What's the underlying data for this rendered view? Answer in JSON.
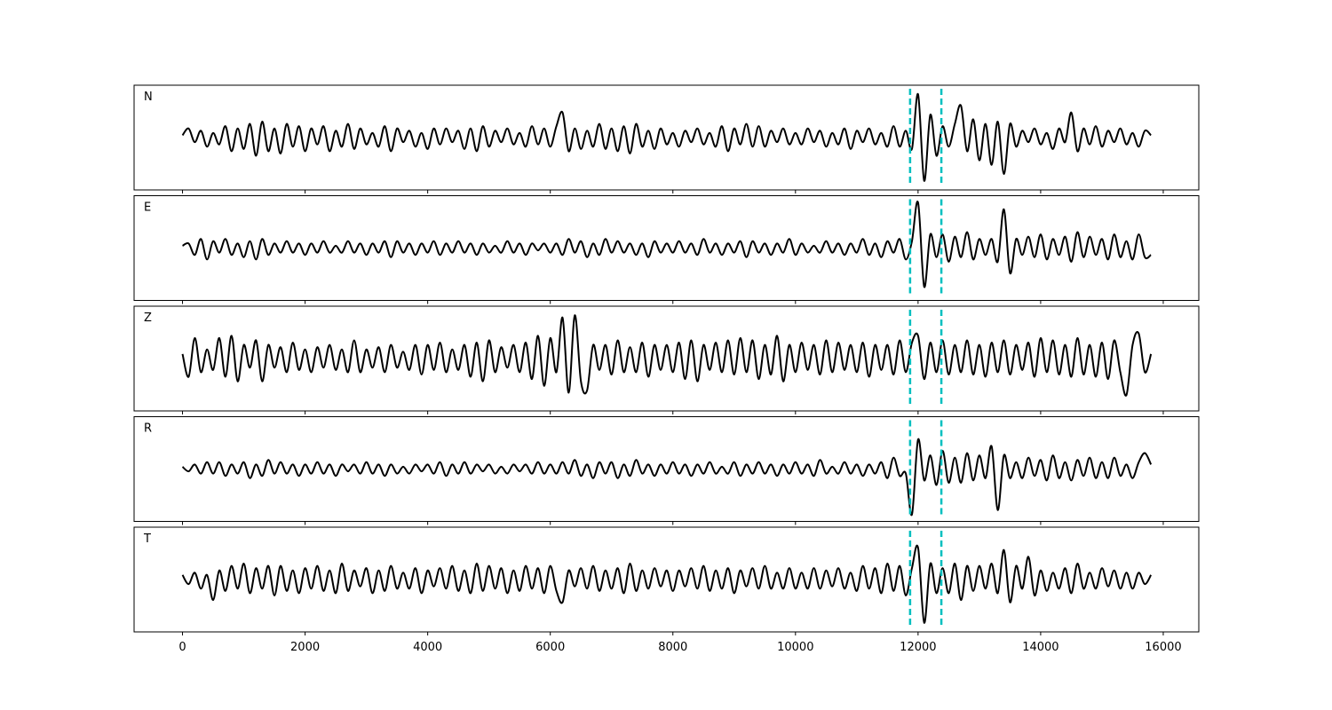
{
  "chart_data": {
    "type": "line",
    "x": [
      0,
      100,
      200,
      300,
      400,
      500,
      600,
      700,
      800,
      900,
      1000,
      1100,
      1200,
      1300,
      1400,
      1500,
      1600,
      1700,
      1800,
      1900,
      2000,
      2100,
      2200,
      2300,
      2400,
      2500,
      2600,
      2700,
      2800,
      2900,
      3000,
      3100,
      3200,
      3300,
      3400,
      3500,
      3600,
      3700,
      3800,
      3900,
      4000,
      4100,
      4200,
      4300,
      4400,
      4500,
      4600,
      4700,
      4800,
      4900,
      5000,
      5100,
      5200,
      5300,
      5400,
      5500,
      5600,
      5700,
      5800,
      5900,
      6000,
      6100,
      6200,
      6300,
      6400,
      6500,
      6600,
      6700,
      6800,
      6900,
      7000,
      7100,
      7200,
      7300,
      7400,
      7500,
      7600,
      7700,
      7800,
      7900,
      8000,
      8100,
      8200,
      8300,
      8400,
      8500,
      8600,
      8700,
      8800,
      8900,
      9000,
      9100,
      9200,
      9300,
      9400,
      9500,
      9600,
      9700,
      9800,
      9900,
      10000,
      10100,
      10200,
      10300,
      10400,
      10500,
      10600,
      10700,
      10800,
      10900,
      11000,
      11100,
      11200,
      11300,
      11400,
      11500,
      11600,
      11700,
      11800,
      11900,
      12000,
      12100,
      12200,
      12300,
      12400,
      12500,
      12600,
      12700,
      12800,
      12900,
      13000,
      13100,
      13200,
      13300,
      13400,
      13500,
      13600,
      13700,
      13800,
      13900,
      14000,
      14100,
      14200,
      14300,
      14400,
      14500,
      14600,
      14700,
      14800,
      14900,
      15000,
      15100,
      15200,
      15300,
      15400,
      15500,
      15600,
      15700,
      15800
    ],
    "series": [
      {
        "name": "N",
        "color": "#000000",
        "values": [
          0.05,
          0.2,
          -0.1,
          0.15,
          -0.2,
          0.1,
          -0.15,
          0.25,
          -0.3,
          0.2,
          -0.25,
          0.3,
          -0.4,
          0.35,
          -0.3,
          0.2,
          -0.35,
          0.3,
          -0.2,
          0.25,
          -0.3,
          0.2,
          -0.15,
          0.25,
          -0.3,
          0.15,
          -0.2,
          0.3,
          -0.25,
          0.2,
          -0.15,
          0.1,
          -0.2,
          0.25,
          -0.3,
          0.2,
          -0.1,
          0.15,
          -0.2,
          0.1,
          -0.25,
          0.2,
          -0.15,
          0.2,
          -0.1,
          0.15,
          -0.25,
          0.2,
          -0.3,
          0.25,
          -0.2,
          0.15,
          -0.1,
          0.2,
          -0.15,
          0.1,
          -0.2,
          0.25,
          -0.15,
          0.2,
          -0.2,
          0.25,
          0.55,
          -0.3,
          0.2,
          -0.25,
          0.15,
          -0.2,
          0.3,
          -0.25,
          0.2,
          -0.3,
          0.25,
          -0.35,
          0.3,
          -0.2,
          0.15,
          -0.25,
          0.2,
          -0.15,
          0.1,
          -0.2,
          0.15,
          -0.1,
          0.2,
          -0.15,
          0.1,
          -0.2,
          0.25,
          -0.3,
          0.2,
          -0.15,
          0.3,
          -0.2,
          0.25,
          -0.2,
          0.15,
          -0.1,
          0.2,
          -0.15,
          0.1,
          -0.15,
          0.2,
          -0.1,
          0.15,
          -0.2,
          0.1,
          -0.15,
          0.2,
          -0.25,
          0.15,
          -0.1,
          0.2,
          -0.15,
          0.1,
          -0.2,
          0.25,
          -0.2,
          0.15,
          -0.25,
          0.95,
          -0.95,
          0.5,
          -0.4,
          0.25,
          -0.2,
          0.3,
          0.7,
          -0.3,
          0.4,
          -0.5,
          0.3,
          -0.6,
          0.35,
          -0.8,
          0.3,
          -0.2,
          0.15,
          -0.1,
          0.2,
          -0.15,
          0.1,
          -0.25,
          0.2,
          -0.1,
          0.55,
          -0.3,
          0.2,
          -0.15,
          0.25,
          -0.2,
          0.15,
          -0.1,
          0.2,
          -0.15,
          0.1,
          -0.2,
          0.15,
          0.05
        ]
      },
      {
        "name": "E",
        "color": "#000000",
        "values": [
          0.05,
          0.1,
          -0.15,
          0.2,
          -0.25,
          0.15,
          -0.1,
          0.2,
          -0.15,
          0.1,
          -0.2,
          0.15,
          -0.25,
          0.2,
          -0.15,
          0.1,
          -0.1,
          0.15,
          -0.1,
          0.1,
          -0.15,
          0.1,
          -0.1,
          0.15,
          -0.1,
          0.05,
          -0.1,
          0.15,
          -0.1,
          0.1,
          -0.15,
          0.1,
          -0.1,
          0.15,
          -0.2,
          0.15,
          -0.1,
          0.1,
          -0.15,
          0.1,
          -0.1,
          0.15,
          -0.15,
          0.1,
          -0.1,
          0.15,
          -0.1,
          0.1,
          -0.15,
          0.1,
          -0.1,
          0.05,
          -0.1,
          0.15,
          -0.1,
          0.1,
          -0.15,
          0.1,
          -0.05,
          0.1,
          -0.1,
          0.1,
          -0.15,
          0.2,
          -0.1,
          0.15,
          -0.2,
          0.1,
          -0.15,
          0.2,
          -0.1,
          0.15,
          -0.1,
          0.1,
          -0.15,
          0.1,
          -0.2,
          0.15,
          -0.1,
          0.1,
          -0.1,
          0.15,
          -0.1,
          0.1,
          -0.15,
          0.2,
          -0.1,
          0.1,
          -0.15,
          0.1,
          -0.1,
          0.15,
          -0.2,
          0.15,
          -0.1,
          0.1,
          -0.15,
          0.1,
          -0.1,
          0.2,
          -0.15,
          0.1,
          -0.1,
          0.05,
          -0.1,
          0.15,
          -0.1,
          0.1,
          -0.15,
          0.1,
          -0.1,
          0.2,
          -0.15,
          0.1,
          -0.2,
          0.15,
          -0.1,
          0.2,
          -0.25,
          0.15,
          1.0,
          -0.85,
          0.3,
          -0.2,
          0.3,
          -0.3,
          0.25,
          -0.2,
          0.35,
          -0.25,
          0.2,
          -0.15,
          0.2,
          -0.3,
          0.85,
          -0.55,
          0.2,
          -0.15,
          0.25,
          -0.2,
          0.3,
          -0.25,
          0.2,
          -0.15,
          0.25,
          -0.3,
          0.35,
          -0.2,
          0.25,
          -0.15,
          0.2,
          -0.25,
          0.3,
          -0.2,
          0.15,
          -0.25,
          0.3,
          -0.2,
          -0.15
        ]
      },
      {
        "name": "Z",
        "color": "#000000",
        "values": [
          0.1,
          -0.4,
          0.45,
          -0.3,
          0.2,
          -0.25,
          0.45,
          -0.4,
          0.5,
          -0.5,
          0.3,
          -0.2,
          0.4,
          -0.5,
          0.3,
          -0.2,
          0.25,
          -0.3,
          0.35,
          -0.25,
          0.2,
          -0.3,
          0.25,
          -0.2,
          0.3,
          -0.25,
          0.2,
          -0.3,
          0.4,
          -0.3,
          0.2,
          -0.2,
          0.25,
          -0.3,
          0.3,
          -0.2,
          0.15,
          -0.25,
          0.3,
          -0.35,
          0.3,
          -0.25,
          0.35,
          -0.3,
          0.2,
          -0.25,
          0.3,
          -0.4,
          0.35,
          -0.5,
          0.4,
          -0.3,
          0.25,
          -0.2,
          0.3,
          -0.3,
          0.35,
          -0.45,
          0.5,
          -0.6,
          0.45,
          -0.3,
          0.9,
          -0.75,
          0.95,
          -0.5,
          -0.7,
          0.3,
          -0.25,
          0.3,
          -0.35,
          0.4,
          -0.3,
          0.25,
          -0.3,
          0.35,
          -0.4,
          0.3,
          -0.25,
          0.3,
          -0.3,
          0.35,
          -0.45,
          0.4,
          -0.5,
          0.3,
          -0.25,
          0.35,
          -0.3,
          0.4,
          -0.35,
          0.45,
          -0.3,
          0.4,
          -0.45,
          0.3,
          -0.35,
          0.5,
          -0.5,
          0.3,
          -0.3,
          0.35,
          -0.25,
          0.3,
          -0.35,
          0.4,
          -0.3,
          0.35,
          -0.25,
          0.3,
          -0.3,
          0.35,
          -0.4,
          0.3,
          -0.25,
          0.3,
          -0.35,
          0.4,
          -0.3,
          0.35,
          0.5,
          -0.45,
          0.35,
          -0.3,
          0.4,
          -0.35,
          0.3,
          -0.3,
          0.4,
          -0.35,
          0.3,
          -0.4,
          0.35,
          -0.3,
          0.4,
          -0.35,
          0.3,
          -0.25,
          0.35,
          -0.4,
          0.45,
          -0.3,
          0.4,
          -0.35,
          0.3,
          -0.4,
          0.45,
          -0.35,
          0.3,
          -0.4,
          0.35,
          -0.45,
          0.4,
          -0.3,
          -0.8,
          0.3,
          0.55,
          -0.3,
          0.1
        ]
      },
      {
        "name": "R",
        "color": "#000000",
        "values": [
          0.05,
          -0.05,
          0.1,
          -0.1,
          0.15,
          -0.1,
          0.15,
          -0.15,
          0.1,
          -0.1,
          0.15,
          -0.2,
          0.1,
          -0.15,
          0.2,
          -0.1,
          0.15,
          -0.1,
          0.1,
          -0.15,
          0.1,
          -0.1,
          0.15,
          -0.1,
          0.1,
          -0.15,
          0.1,
          -0.05,
          0.1,
          -0.1,
          0.15,
          -0.1,
          0.1,
          -0.15,
          0.1,
          -0.1,
          0.05,
          -0.1,
          0.1,
          -0.05,
          0.1,
          -0.1,
          0.15,
          -0.15,
          0.1,
          -0.1,
          0.15,
          -0.1,
          0.1,
          -0.05,
          0.1,
          -0.1,
          0.05,
          -0.1,
          0.1,
          -0.05,
          0.1,
          -0.1,
          0.15,
          -0.1,
          0.1,
          -0.1,
          0.15,
          -0.1,
          0.2,
          -0.15,
          0.1,
          -0.2,
          0.15,
          -0.1,
          0.15,
          -0.2,
          0.1,
          -0.15,
          0.2,
          -0.1,
          0.1,
          -0.15,
          0.1,
          -0.1,
          0.15,
          -0.1,
          0.1,
          -0.15,
          0.1,
          -0.1,
          0.15,
          -0.1,
          0.05,
          -0.1,
          0.15,
          -0.15,
          0.1,
          -0.1,
          0.15,
          -0.1,
          0.1,
          -0.15,
          0.1,
          -0.1,
          0.15,
          -0.1,
          0.1,
          -0.15,
          0.2,
          -0.1,
          0.05,
          -0.1,
          0.15,
          -0.1,
          0.1,
          -0.15,
          0.1,
          -0.1,
          0.15,
          -0.2,
          0.25,
          -0.15,
          -0.1,
          -1.0,
          0.65,
          -0.25,
          0.3,
          -0.35,
          0.4,
          -0.3,
          0.25,
          -0.3,
          0.35,
          -0.25,
          0.3,
          -0.2,
          0.5,
          -0.9,
          0.3,
          -0.2,
          0.15,
          -0.2,
          0.25,
          -0.15,
          0.2,
          -0.25,
          0.3,
          -0.2,
          0.15,
          -0.25,
          0.2,
          -0.15,
          0.25,
          -0.2,
          0.15,
          -0.2,
          0.25,
          -0.15,
          0.1,
          -0.2,
          0.15,
          0.35,
          0.1
        ]
      },
      {
        "name": "T",
        "color": "#000000",
        "values": [
          0.1,
          -0.1,
          0.15,
          -0.2,
          0.1,
          -0.45,
          0.2,
          -0.25,
          0.3,
          -0.2,
          0.35,
          -0.3,
          0.25,
          -0.2,
          0.3,
          -0.35,
          0.3,
          -0.25,
          0.2,
          -0.3,
          0.25,
          -0.2,
          0.3,
          -0.25,
          0.2,
          -0.3,
          0.35,
          -0.25,
          0.2,
          -0.15,
          0.25,
          -0.3,
          0.2,
          -0.25,
          0.3,
          -0.2,
          0.15,
          -0.2,
          0.25,
          -0.3,
          0.2,
          -0.15,
          0.25,
          -0.2,
          0.3,
          -0.25,
          0.2,
          -0.3,
          0.35,
          -0.25,
          0.3,
          -0.2,
          0.25,
          -0.3,
          0.2,
          -0.25,
          0.3,
          -0.2,
          0.25,
          -0.3,
          0.3,
          -0.25,
          -0.5,
          0.2,
          -0.15,
          0.25,
          -0.2,
          0.3,
          -0.25,
          0.2,
          -0.2,
          0.25,
          -0.3,
          0.35,
          -0.25,
          0.2,
          -0.2,
          0.25,
          -0.15,
          0.2,
          -0.25,
          0.2,
          -0.15,
          0.25,
          -0.2,
          0.3,
          -0.25,
          0.2,
          -0.2,
          0.25,
          -0.3,
          0.2,
          -0.15,
          0.25,
          -0.2,
          0.3,
          -0.2,
          0.15,
          -0.2,
          0.25,
          -0.2,
          0.15,
          -0.2,
          0.25,
          -0.2,
          0.2,
          -0.15,
          0.25,
          -0.2,
          0.15,
          -0.25,
          0.3,
          -0.2,
          0.25,
          -0.3,
          0.35,
          -0.25,
          0.3,
          -0.35,
          0.25,
          0.7,
          -0.95,
          0.35,
          -0.3,
          0.25,
          -0.3,
          0.35,
          -0.45,
          0.3,
          -0.25,
          0.3,
          -0.2,
          0.35,
          -0.3,
          0.65,
          -0.5,
          0.3,
          -0.2,
          0.5,
          -0.35,
          0.2,
          -0.25,
          0.15,
          -0.2,
          0.25,
          -0.3,
          0.35,
          -0.2,
          0.15,
          -0.2,
          0.25,
          -0.15,
          0.2,
          -0.2,
          0.15,
          -0.2,
          0.15,
          -0.1,
          0.1
        ]
      }
    ],
    "xlim": [
      -790,
      16580
    ],
    "xticks": [
      0,
      2000,
      4000,
      6000,
      8000,
      10000,
      12000,
      14000,
      16000
    ],
    "ylim": [
      -1.15,
      1.15
    ],
    "markers": [
      11870,
      12380
    ],
    "marker_color": "#00bfbf"
  }
}
